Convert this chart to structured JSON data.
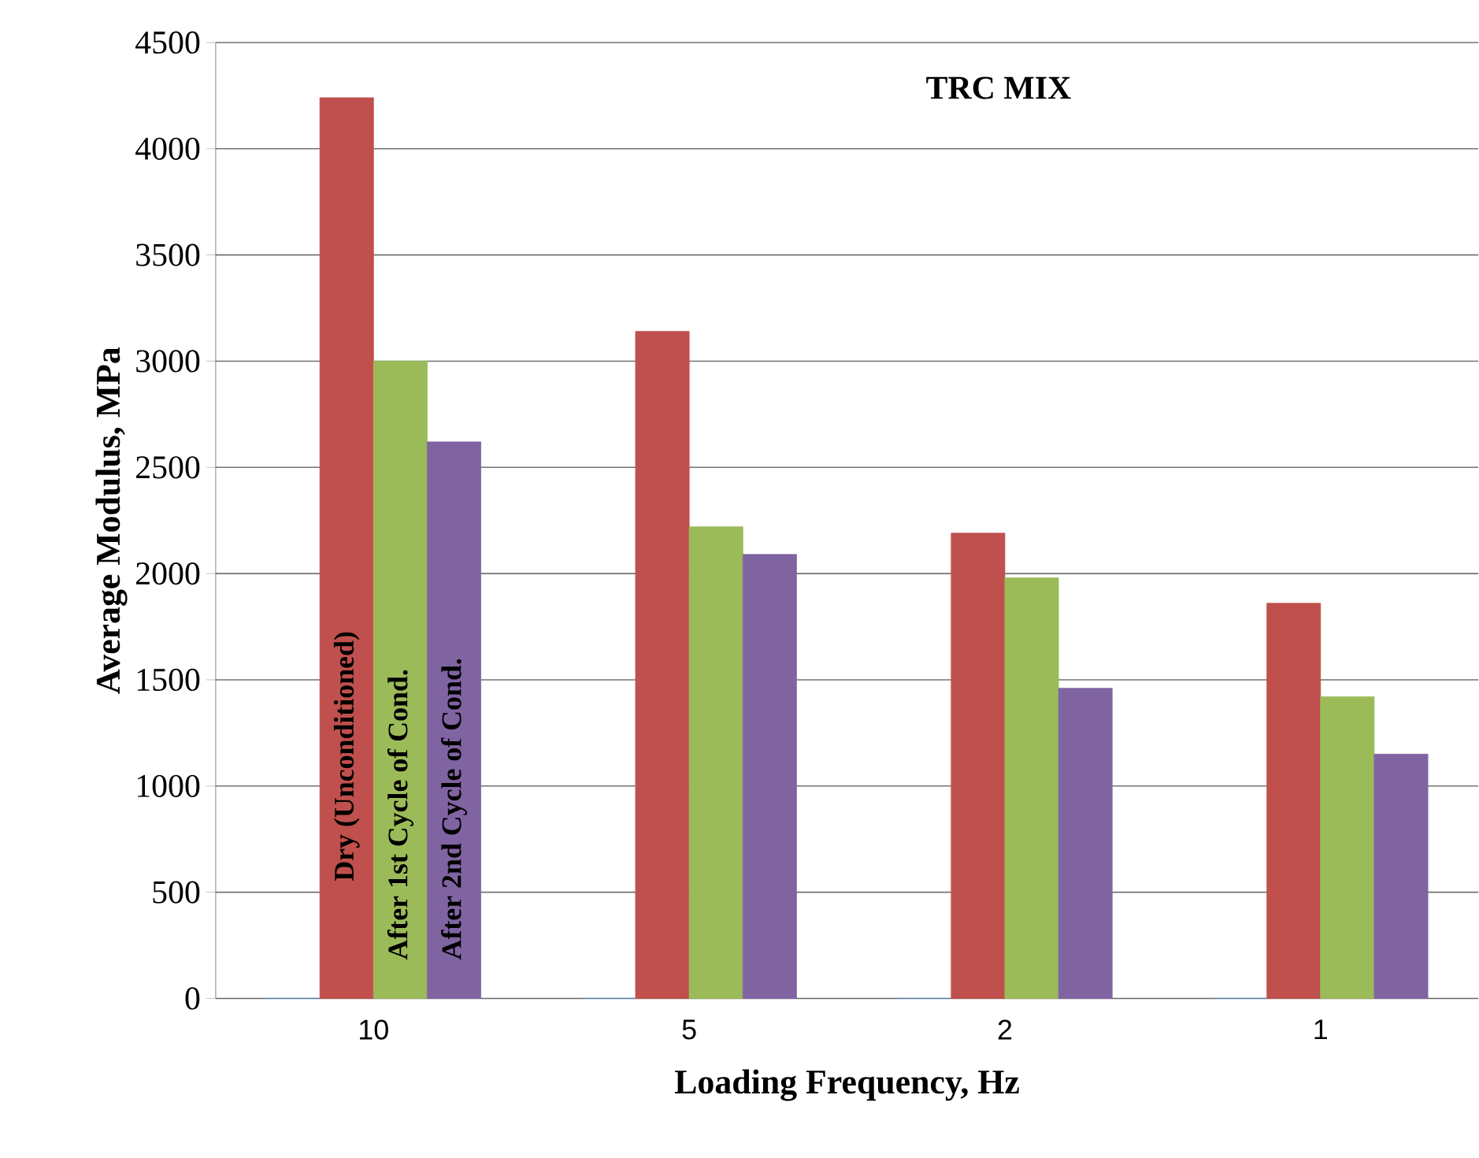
{
  "chart_data": {
    "type": "bar",
    "title": "TRC MIX",
    "xlabel": "Loading Frequency, Hz",
    "ylabel": "Average Modulus, MPa",
    "categories": [
      "10",
      "5",
      "2",
      "1"
    ],
    "series": [
      {
        "color": "#4f81bd",
        "values": [
          0,
          0,
          0,
          0
        ]
      },
      {
        "name": "Dry (Unconditioned)",
        "color": "#c0504d",
        "values": [
          4240,
          3140,
          2190,
          1860
        ]
      },
      {
        "name": "After 1st Cycle of Cond.",
        "color": "#9bbb59",
        "values": [
          3000,
          2220,
          1980,
          1420
        ]
      },
      {
        "name": "After  2nd  Cycle of Cond.",
        "color": "#8064a2",
        "values": [
          2620,
          2090,
          1460,
          1150
        ]
      }
    ],
    "ylim": [
      0,
      4500
    ],
    "yticks": [
      0,
      500,
      1000,
      1500,
      2000,
      2500,
      3000,
      3500,
      4000,
      4500
    ],
    "grid": "y",
    "legend": false
  }
}
